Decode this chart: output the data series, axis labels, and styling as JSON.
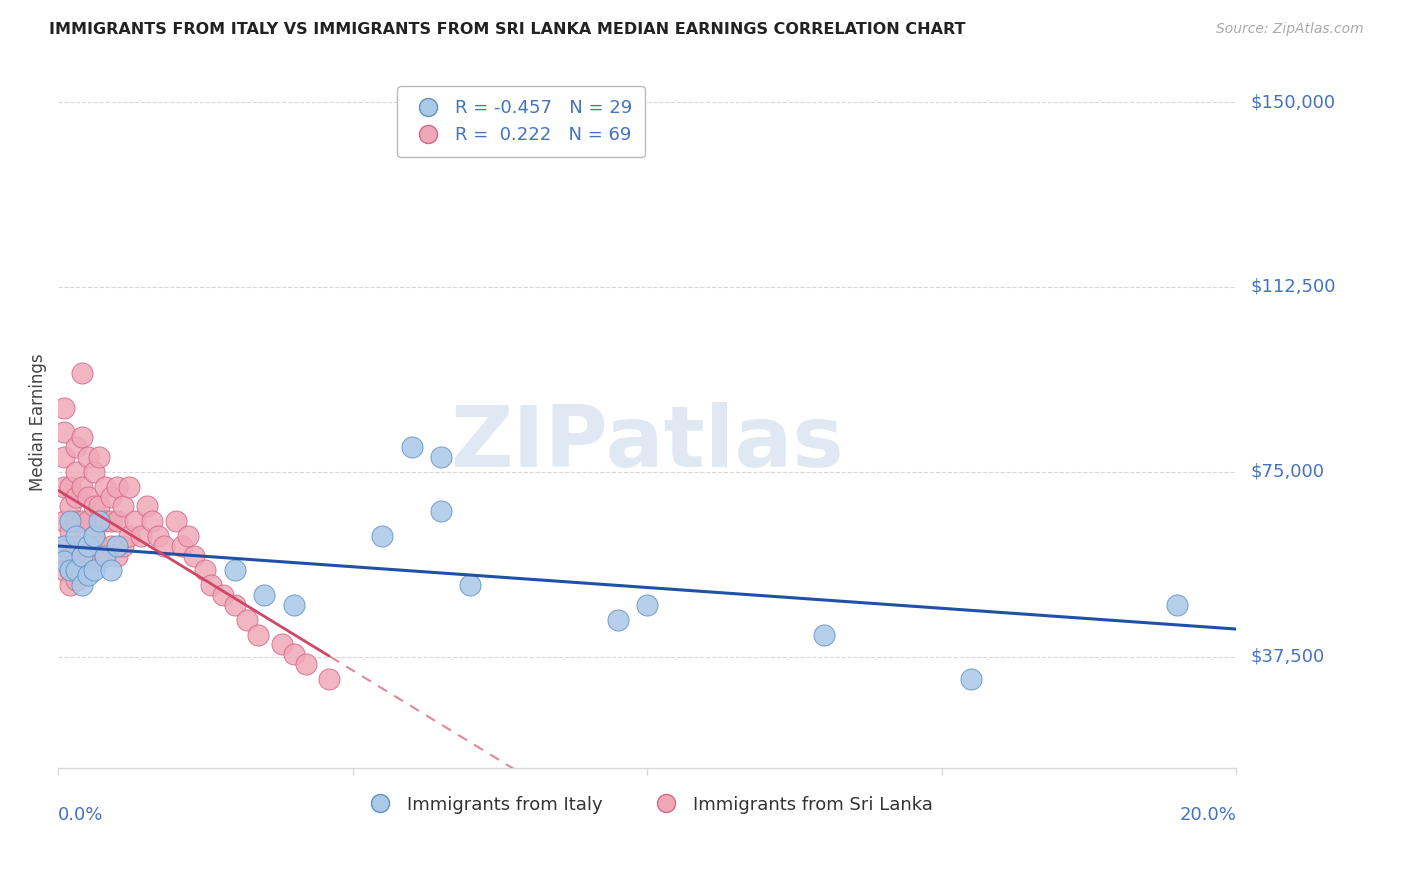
{
  "title": "IMMIGRANTS FROM ITALY VS IMMIGRANTS FROM SRI LANKA MEDIAN EARNINGS CORRELATION CHART",
  "source": "Source: ZipAtlas.com",
  "ylabel": "Median Earnings",
  "ytick_values": [
    0,
    37500,
    75000,
    112500,
    150000
  ],
  "ytick_labels": [
    "",
    "$37,500",
    "$75,000",
    "$112,500",
    "$150,000"
  ],
  "xlim": [
    0.0,
    0.2
  ],
  "ylim": [
    15000,
    155000
  ],
  "italy_color": "#aac8e8",
  "italy_edge_color": "#6090c0",
  "srilanka_color": "#f0a8b8",
  "srilanka_edge_color": "#d06888",
  "italy_R": -0.457,
  "italy_N": 29,
  "srilanka_R": 0.222,
  "srilanka_N": 69,
  "italy_line_color": "#2050a8",
  "srilanka_line_solid_color": "#d04868",
  "srilanka_line_dash_color": "#e08898",
  "axis_color": "#4472c4",
  "grid_color": "#d8d8d8",
  "watermark": "ZIPatlas",
  "italy_x": [
    0.001,
    0.001,
    0.002,
    0.002,
    0.003,
    0.003,
    0.004,
    0.004,
    0.005,
    0.005,
    0.006,
    0.006,
    0.007,
    0.008,
    0.009,
    0.01,
    0.03,
    0.035,
    0.04,
    0.055,
    0.06,
    0.065,
    0.065,
    0.07,
    0.095,
    0.1,
    0.13,
    0.155,
    0.19
  ],
  "italy_y": [
    60000,
    57000,
    65000,
    55000,
    62000,
    55000,
    58000,
    52000,
    60000,
    54000,
    62000,
    55000,
    65000,
    58000,
    55000,
    60000,
    55000,
    50000,
    48000,
    62000,
    80000,
    78000,
    67000,
    52000,
    45000,
    48000,
    42000,
    33000,
    48000
  ],
  "srilanka_x": [
    0.001,
    0.001,
    0.001,
    0.001,
    0.001,
    0.001,
    0.001,
    0.002,
    0.002,
    0.002,
    0.002,
    0.002,
    0.002,
    0.003,
    0.003,
    0.003,
    0.003,
    0.003,
    0.003,
    0.003,
    0.004,
    0.004,
    0.004,
    0.004,
    0.004,
    0.005,
    0.005,
    0.005,
    0.005,
    0.006,
    0.006,
    0.006,
    0.006,
    0.007,
    0.007,
    0.007,
    0.008,
    0.008,
    0.008,
    0.009,
    0.009,
    0.009,
    0.01,
    0.01,
    0.01,
    0.011,
    0.011,
    0.012,
    0.012,
    0.013,
    0.014,
    0.015,
    0.016,
    0.017,
    0.018,
    0.02,
    0.021,
    0.022,
    0.023,
    0.025,
    0.026,
    0.028,
    0.03,
    0.032,
    0.034,
    0.038,
    0.04,
    0.042,
    0.046
  ],
  "srilanka_y": [
    88000,
    83000,
    78000,
    72000,
    65000,
    60000,
    55000,
    72000,
    68000,
    63000,
    58000,
    55000,
    52000,
    80000,
    75000,
    70000,
    65000,
    60000,
    57000,
    53000,
    95000,
    82000,
    72000,
    65000,
    58000,
    78000,
    70000,
    65000,
    58000,
    75000,
    68000,
    62000,
    57000,
    78000,
    68000,
    60000,
    72000,
    65000,
    58000,
    70000,
    65000,
    60000,
    72000,
    65000,
    58000,
    68000,
    60000,
    72000,
    62000,
    65000,
    62000,
    68000,
    65000,
    62000,
    60000,
    65000,
    60000,
    62000,
    58000,
    55000,
    52000,
    50000,
    48000,
    45000,
    42000,
    40000,
    38000,
    36000,
    33000
  ]
}
